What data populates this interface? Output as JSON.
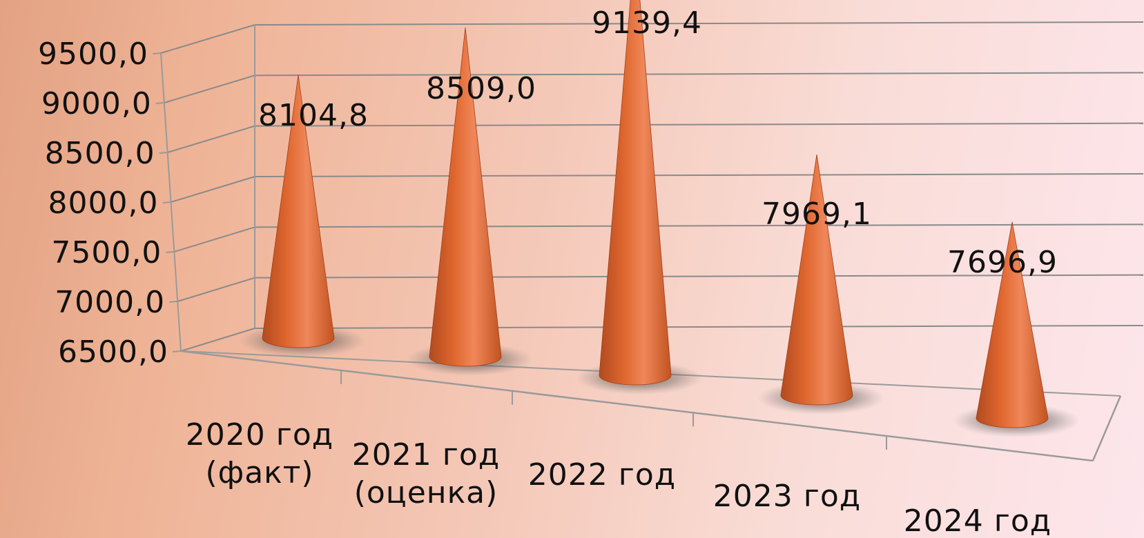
{
  "chart_data": {
    "type": "bar",
    "bar_shape": "cone",
    "categories": [
      [
        "2020 год",
        "(факт)"
      ],
      [
        "2021 год",
        "(оценка)"
      ],
      [
        "2022 год"
      ],
      [
        "2023 год"
      ],
      [
        "2024 год"
      ]
    ],
    "values": [
      8104.8,
      8509.0,
      9139.4,
      7969.1,
      7696.9
    ],
    "value_labels": [
      "8104,8",
      "8509,0",
      "9139,4",
      "7969,1",
      "7696,9"
    ],
    "y_ticks": [
      6500,
      7000,
      7500,
      8000,
      8500,
      9000,
      9500
    ],
    "y_tick_labels": [
      "6500,0",
      "7000,0",
      "7500,0",
      "8000,0",
      "8500,0",
      "9000,0",
      "9500,0"
    ],
    "ylim": [
      6500,
      9500
    ],
    "title": "",
    "xlabel": "",
    "ylabel": "",
    "grid": true,
    "legend": "none",
    "colors": {
      "cone": "#e0672f",
      "cone_light": "#f28e57",
      "cone_dark": "#a9431b",
      "grid": "#8a8a8a",
      "axis": "#9a9a9a"
    }
  }
}
